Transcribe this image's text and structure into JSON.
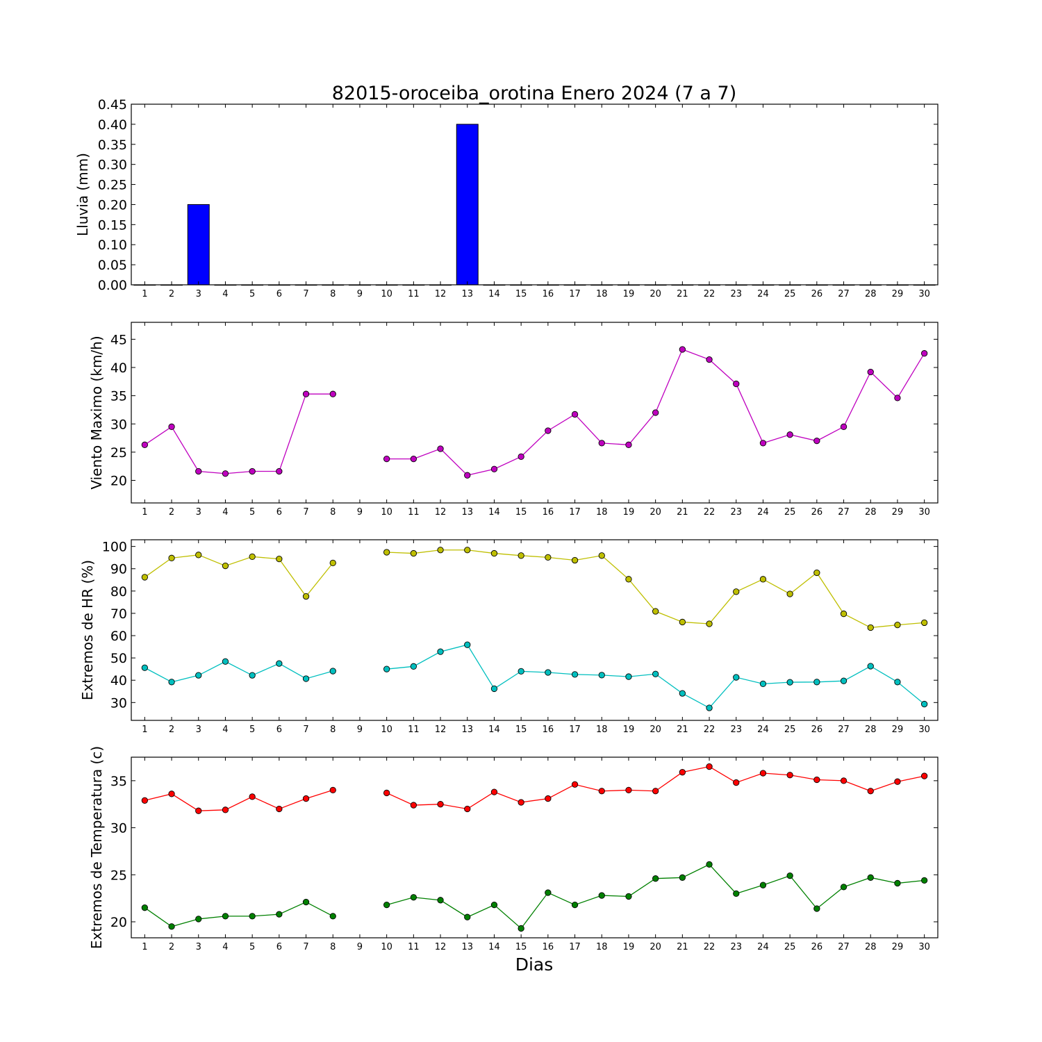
{
  "title": "82015-oroceiba_orotina Enero 2024  (7 a 7)",
  "xlabel": "Dias",
  "colors": {
    "rain": "#0000ff",
    "wind": "#bf00bf",
    "hr_max": "#bfbf00",
    "hr_min": "#00bfbf",
    "temp_max": "#ff0000",
    "temp_min": "#008000"
  },
  "chart_data": [
    {
      "type": "bar",
      "ylabel": "Lluvia (mm)",
      "xlim": [
        0.5,
        30.5
      ],
      "ylim": [
        0,
        0.45
      ],
      "yticks": [
        "0.00",
        "0.05",
        "0.10",
        "0.15",
        "0.20",
        "0.25",
        "0.30",
        "0.35",
        "0.40",
        "0.45"
      ],
      "categories": [
        1,
        2,
        3,
        4,
        5,
        6,
        7,
        8,
        9,
        10,
        11,
        12,
        13,
        14,
        15,
        16,
        17,
        18,
        19,
        20,
        21,
        22,
        23,
        24,
        25,
        26,
        27,
        28,
        29,
        30
      ],
      "series": [
        {
          "values": [
            0,
            0,
            0.2,
            0,
            0,
            0,
            0,
            0,
            0,
            0,
            0,
            0,
            0.4,
            0,
            0,
            0,
            0,
            0,
            0,
            0,
            0,
            0,
            0,
            0,
            0,
            0,
            0,
            0,
            0,
            0
          ]
        }
      ]
    },
    {
      "type": "line",
      "ylabel": "Viento Maximo (km/h)",
      "xlim": [
        0.5,
        30.5
      ],
      "ylim": [
        16,
        48
      ],
      "yticks": [
        "20",
        "25",
        "30",
        "35",
        "40",
        "45"
      ],
      "x": [
        1,
        2,
        3,
        4,
        5,
        6,
        7,
        8,
        9,
        10,
        11,
        12,
        13,
        14,
        15,
        16,
        17,
        18,
        19,
        20,
        21,
        22,
        23,
        24,
        25,
        26,
        27,
        28,
        29,
        30
      ],
      "series": [
        {
          "values": [
            26.3,
            29.5,
            21.6,
            21.2,
            21.6,
            21.6,
            35.3,
            35.3,
            null,
            23.8,
            23.8,
            25.6,
            20.9,
            22.0,
            24.2,
            28.8,
            31.7,
            26.6,
            26.3,
            32.0,
            43.2,
            41.4,
            37.1,
            26.6,
            28.1,
            27.0,
            29.5,
            39.2,
            34.6,
            42.5
          ]
        }
      ]
    },
    {
      "type": "line",
      "ylabel": "Extremos de HR (%)",
      "xlim": [
        0.5,
        30.5
      ],
      "ylim": [
        22,
        103
      ],
      "yticks": [
        "30",
        "40",
        "50",
        "60",
        "70",
        "80",
        "90",
        "100"
      ],
      "x": [
        1,
        2,
        3,
        4,
        5,
        6,
        7,
        8,
        9,
        10,
        11,
        12,
        13,
        14,
        15,
        16,
        17,
        18,
        19,
        20,
        21,
        22,
        23,
        24,
        25,
        26,
        27,
        28,
        29,
        30
      ],
      "series": [
        {
          "values": [
            86.2,
            94.8,
            96.2,
            91.3,
            95.4,
            94.4,
            77.6,
            92.6,
            null,
            97.4,
            96.9,
            98.4,
            98.4,
            96.9,
            95.9,
            95.1,
            93.8,
            95.9,
            85.3,
            70.9,
            66.1,
            65.3,
            79.7,
            85.3,
            78.7,
            88.2,
            69.8,
            63.6,
            64.8,
            65.8
          ]
        },
        {
          "values": [
            45.6,
            39.2,
            42.2,
            48.4,
            42.2,
            47.5,
            40.7,
            44.1,
            null,
            45.0,
            46.2,
            52.8,
            55.9,
            36.2,
            44.0,
            43.5,
            42.6,
            42.3,
            41.6,
            42.8,
            34.1,
            27.6,
            41.3,
            38.4,
            39.1,
            39.2,
            39.7,
            46.3,
            39.2,
            29.3
          ]
        }
      ]
    },
    {
      "type": "line",
      "ylabel": "Extremos de Temperatura (c)",
      "xlim": [
        0.5,
        30.5
      ],
      "ylim": [
        18.3,
        37.5
      ],
      "yticks": [
        "20",
        "25",
        "30",
        "35"
      ],
      "x": [
        1,
        2,
        3,
        4,
        5,
        6,
        7,
        8,
        9,
        10,
        11,
        12,
        13,
        14,
        15,
        16,
        17,
        18,
        19,
        20,
        21,
        22,
        23,
        24,
        25,
        26,
        27,
        28,
        29,
        30
      ],
      "series": [
        {
          "values": [
            32.9,
            33.6,
            31.8,
            31.9,
            33.3,
            32.0,
            33.1,
            34.0,
            null,
            33.7,
            32.4,
            32.5,
            32.0,
            33.8,
            32.7,
            33.1,
            34.6,
            33.9,
            34.0,
            33.9,
            35.9,
            36.5,
            34.8,
            35.8,
            35.6,
            35.1,
            35.0,
            33.9,
            34.9,
            35.5
          ]
        },
        {
          "values": [
            21.5,
            19.5,
            20.3,
            20.6,
            20.6,
            20.8,
            22.1,
            20.6,
            null,
            21.8,
            22.6,
            22.3,
            20.5,
            21.8,
            19.3,
            23.1,
            21.8,
            22.8,
            22.7,
            24.6,
            24.7,
            26.1,
            23.0,
            23.9,
            24.9,
            21.4,
            23.7,
            24.7,
            24.1,
            24.4
          ]
        }
      ]
    }
  ]
}
